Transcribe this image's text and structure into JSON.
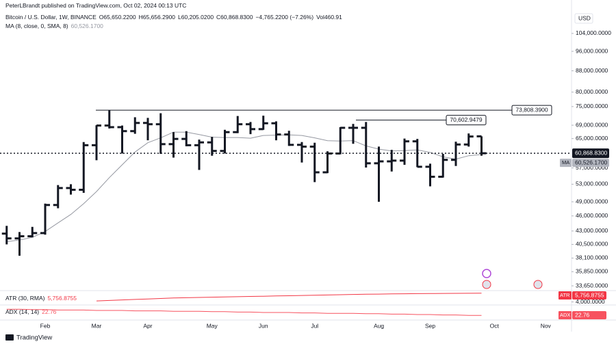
{
  "header": {
    "publisher": "PeterLBrandt published on TradingView.com, Oct 02, 2024 00:13 UTC"
  },
  "chart_data": {
    "type": "ohlc",
    "symbol": "Bitcoin / U.S. Dollar, 1W, BINANCE",
    "ohlc_labels": [
      "O65,650.2200",
      "H65,656.2900",
      "L60,205.0200",
      "C60,868.8300"
    ],
    "change_label": "−4,765.2200 (−7.26%)",
    "volume_label": "Vol460.91",
    "currency": "USD",
    "categories": [
      null,
      null,
      null,
      "Feb",
      null,
      null,
      null,
      "Mar",
      null,
      null,
      null,
      "Apr",
      null,
      null,
      null,
      null,
      "May",
      null,
      null,
      null,
      "Jun",
      null,
      null,
      null,
      "Jul",
      null,
      null,
      null,
      null,
      "Aug",
      null,
      null,
      null,
      "Sep",
      null,
      null,
      null,
      null,
      "Oct",
      null,
      null,
      null,
      "Nov"
    ],
    "open": [
      42500,
      41600,
      42000,
      42600,
      48300,
      52100,
      51700,
      63100,
      68900,
      68400,
      67200,
      69700,
      69300,
      63400,
      64900,
      63100,
      63900,
      61500,
      66900,
      69300,
      67800,
      69600,
      66200,
      63200,
      62700,
      55900,
      60800,
      68200,
      68200,
      58200,
      58700,
      58900,
      64200,
      57300,
      54800,
      59100,
      63300,
      65650.22,
      null,
      null,
      null,
      null,
      null
    ],
    "high": [
      44000,
      42800,
      43800,
      48600,
      52800,
      53000,
      64000,
      69000,
      73800,
      68900,
      71500,
      71300,
      72800,
      66900,
      67200,
      64700,
      65500,
      67600,
      71900,
      70000,
      72000,
      70200,
      67300,
      64000,
      63800,
      61400,
      68400,
      69400,
      70000,
      62700,
      61800,
      65000,
      64900,
      58100,
      60700,
      64100,
      66500,
      65656.29,
      null,
      null,
      null,
      null,
      null
    ],
    "low": [
      40500,
      38500,
      41800,
      42300,
      47600,
      50600,
      51000,
      59000,
      68000,
      60800,
      66400,
      64500,
      60700,
      59700,
      62800,
      56500,
      60200,
      60800,
      66600,
      66300,
      67600,
      64500,
      62900,
      58400,
      53500,
      55700,
      60600,
      63500,
      57100,
      49000,
      56100,
      57800,
      57200,
      52500,
      54600,
      57500,
      62700,
      60205.02,
      null,
      null,
      null,
      null,
      null
    ],
    "close": [
      41600,
      42000,
      42600,
      48300,
      52100,
      51700,
      63100,
      68900,
      68400,
      67200,
      69700,
      69300,
      63400,
      64900,
      63100,
      63900,
      61500,
      66900,
      69300,
      67800,
      69600,
      66200,
      63200,
      62700,
      55900,
      60800,
      68200,
      68200,
      58200,
      58700,
      58900,
      64200,
      57300,
      54800,
      59100,
      63300,
      65600,
      60868.83,
      null,
      null,
      null,
      null,
      null
    ],
    "color": "#131722",
    "log_scale": true,
    "grid": false,
    "ylim": [
      32940,
      113600
    ],
    "yticks": [
      {
        "value": 104000,
        "label": "104,000.0000"
      },
      {
        "value": 96000,
        "label": "96,000.0000"
      },
      {
        "value": 88000,
        "label": "88,000.0000"
      },
      {
        "value": 80000,
        "label": "80,000.0000"
      },
      {
        "value": 75000,
        "label": "75,000.0000"
      },
      {
        "value": 69000,
        "label": "69,000.0000"
      },
      {
        "value": 65000,
        "label": "65,000.0000"
      },
      {
        "value": 57000,
        "label": "57,000.0000"
      },
      {
        "value": 53000,
        "label": "53,000.0000"
      },
      {
        "value": 49000,
        "label": "49,000.0000"
      },
      {
        "value": 46000,
        "label": "46,000.0000"
      },
      {
        "value": 43000,
        "label": "43,000.0000"
      },
      {
        "value": 40500,
        "label": "40,500.0000"
      },
      {
        "value": 38100,
        "label": "38,100.0000"
      },
      {
        "value": 35850,
        "label": "35,850.0000"
      },
      {
        "value": 33650,
        "label": "33,650.0000"
      }
    ],
    "last_price_label": "60,868.8300",
    "ma": {
      "name": "MA (8, close, 0, SMA, 8)",
      "short_name": "MA",
      "color": "#9598a1",
      "value_label": "60,526.1700",
      "values": [
        41000,
        41300,
        41800,
        42900,
        44600,
        46300,
        48600,
        51300,
        54600,
        57800,
        61200,
        63800,
        65200,
        66900,
        66900,
        66200,
        65400,
        65300,
        65300,
        65100,
        65900,
        66000,
        66100,
        65900,
        65200,
        64400,
        64300,
        64400,
        62900,
        62000,
        61500,
        61600,
        61800,
        61100,
        59900,
        59300,
        60200,
        60526.17,
        null,
        null,
        null,
        null,
        null
      ]
    },
    "levels": [
      {
        "value": 73808.39,
        "label": "73,808.3900"
      },
      {
        "value": 70602.9479,
        "label": "70,602.9479"
      }
    ],
    "indicators": [
      {
        "name": "ATR (30, RMA)",
        "short_name": "ATR",
        "color": "#f23645",
        "value_label": "5,756.8755",
        "ylim": [
          3800,
          6000
        ],
        "yticks": [
          {
            "value": 4000,
            "label": "4,000.0000"
          }
        ],
        "values": [
          null,
          null,
          null,
          null,
          null,
          null,
          null,
          4200,
          4300,
          4400,
          4500,
          4600,
          4700,
          4800,
          4850,
          4900,
          4950,
          5000,
          5050,
          5100,
          5150,
          5200,
          5250,
          5300,
          5350,
          5400,
          5450,
          5500,
          5550,
          5580,
          5610,
          5640,
          5670,
          5690,
          5710,
          5730,
          5745,
          5756.8755,
          null,
          null,
          null,
          null,
          null
        ]
      },
      {
        "name": "ADX (14, 14)",
        "short_name": "ADX",
        "color": "#f7525f",
        "value_label": "22.76",
        "ylim": [
          15,
          45
        ],
        "values": [
          38,
          38,
          37,
          37,
          36,
          36,
          36,
          35,
          35,
          35,
          34,
          34,
          34,
          33,
          33,
          33,
          32,
          32,
          31,
          31,
          30,
          30,
          30,
          29,
          29,
          28,
          28,
          28,
          27,
          27,
          26,
          26,
          25,
          25,
          24,
          24,
          23,
          22.76,
          null,
          null,
          null,
          null,
          null
        ]
      }
    ]
  },
  "footer": {
    "brand": "TradingView"
  }
}
